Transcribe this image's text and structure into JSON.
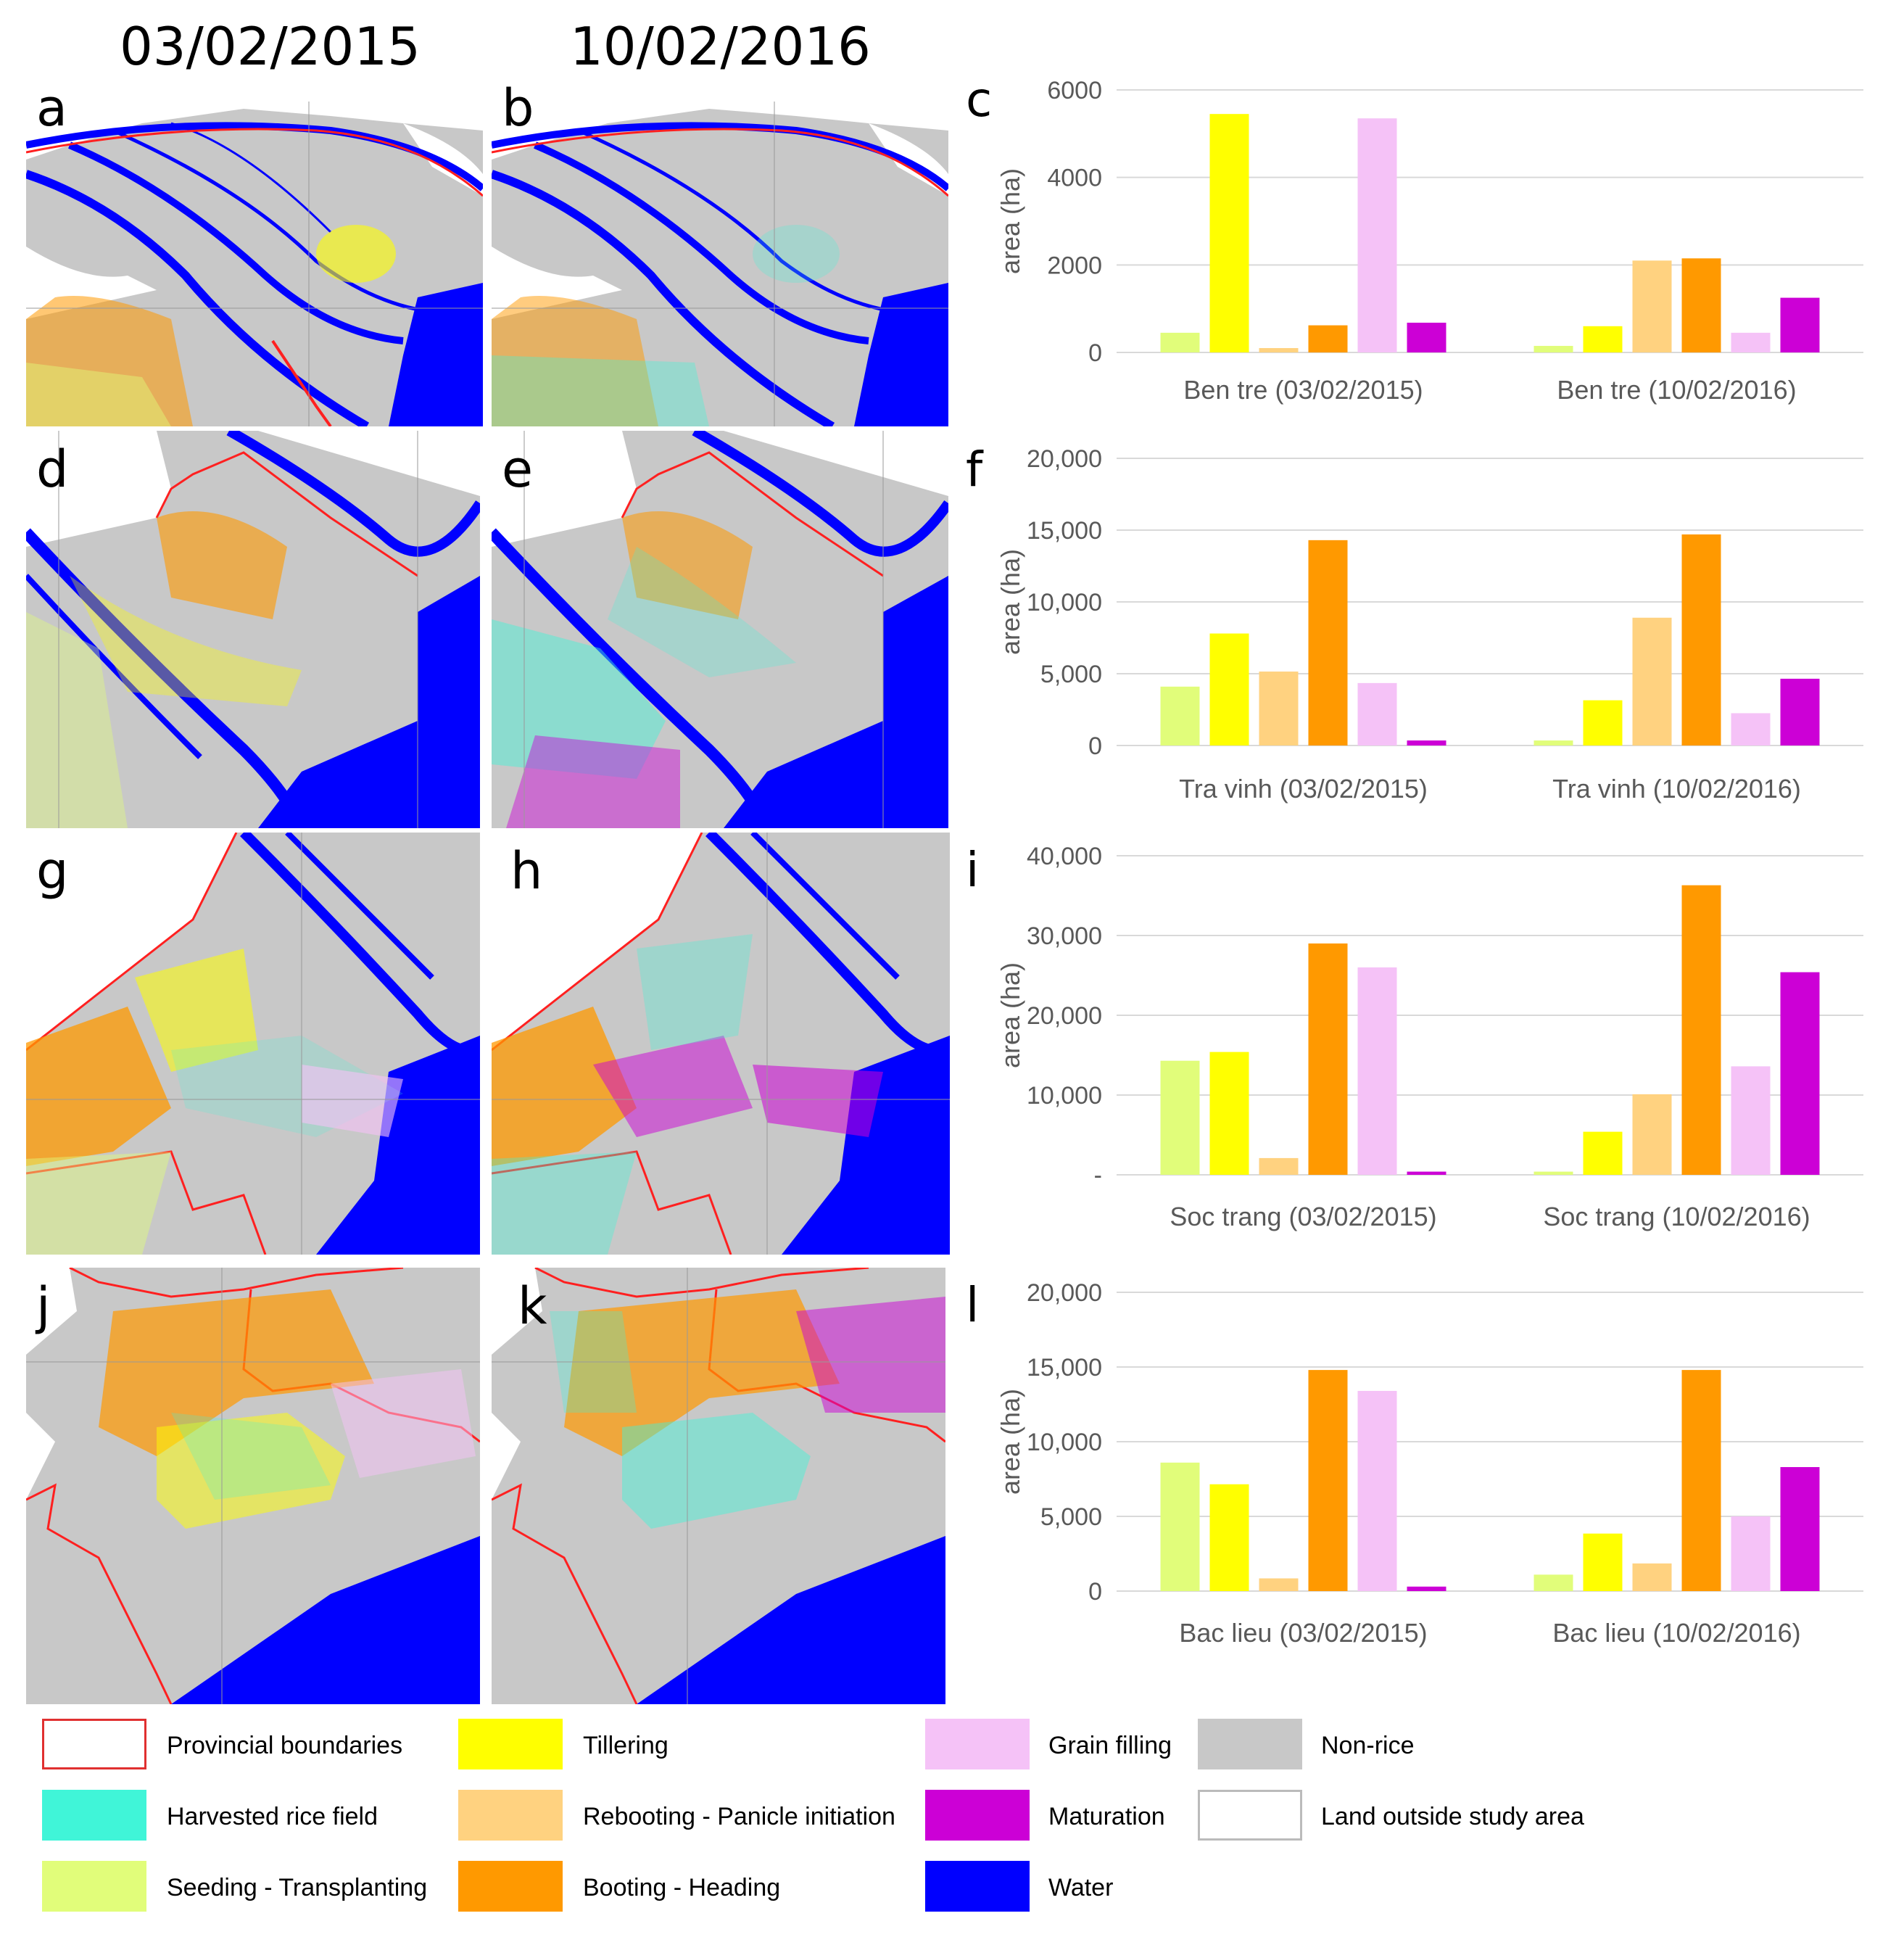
{
  "header": {
    "date_left": "03/02/2015",
    "date_right": "10/02/2016"
  },
  "panels": {
    "map_letters": [
      "a",
      "b",
      "d",
      "e",
      "g",
      "h",
      "j",
      "k"
    ],
    "chart_letters": [
      "c",
      "f",
      "i",
      "l"
    ]
  },
  "colors": {
    "seeding": "#e1fd7a",
    "tillering": "#ffff00",
    "rebooting": "#ffd280",
    "booting": "#ff9900",
    "grain": "#f5c2f7",
    "maturation": "#cc00d6",
    "harvested": "#40f5d8",
    "water": "#0000ff",
    "nonrice": "#c8c8c8",
    "boundary": "#ff2020"
  },
  "chart_data": [
    {
      "type": "bar",
      "title": "",
      "ylabel": "area (ha)",
      "ylim": [
        0,
        6000
      ],
      "yticks": [
        "0",
        "2000",
        "4000",
        "6000"
      ],
      "categories": [
        "Ben tre (03/02/2015)",
        "Ben tre (10/02/2016)"
      ],
      "series": [
        {
          "name": "Seeding - Transplanting",
          "values": [
            450,
            150
          ]
        },
        {
          "name": "Tillering",
          "values": [
            5450,
            600
          ]
        },
        {
          "name": "Rebooting - Panicle initiation",
          "values": [
            100,
            2100
          ]
        },
        {
          "name": "Booting - Heading",
          "values": [
            620,
            2150
          ]
        },
        {
          "name": "Grain filling",
          "values": [
            5350,
            450
          ]
        },
        {
          "name": "Maturation",
          "values": [
            680,
            1250
          ]
        }
      ]
    },
    {
      "type": "bar",
      "title": "",
      "ylabel": "area (ha)",
      "ylim": [
        0,
        20000
      ],
      "yticks": [
        "0",
        "5,000",
        "10,000",
        "15,000",
        "20,000"
      ],
      "categories": [
        "Tra vinh (03/02/2015)",
        "Tra vinh (10/02/2016)"
      ],
      "series": [
        {
          "name": "Seeding - Transplanting",
          "values": [
            4100,
            350
          ]
        },
        {
          "name": "Tillering",
          "values": [
            7800,
            3150
          ]
        },
        {
          "name": "Rebooting - Panicle initiation",
          "values": [
            5150,
            8900
          ]
        },
        {
          "name": "Booting - Heading",
          "values": [
            14300,
            14700
          ]
        },
        {
          "name": "Grain filling",
          "values": [
            4350,
            2250
          ]
        },
        {
          "name": "Maturation",
          "values": [
            350,
            4650
          ]
        }
      ]
    },
    {
      "type": "bar",
      "title": "",
      "ylabel": "area (ha)",
      "ylim": [
        0,
        40000
      ],
      "yticks": [
        "-",
        "10,000",
        "20,000",
        "30,000",
        "40,000"
      ],
      "categories": [
        "Soc trang (03/02/2015)",
        "Soc trang (10/02/2016)"
      ],
      "series": [
        {
          "name": "Seeding - Transplanting",
          "values": [
            14300,
            400
          ]
        },
        {
          "name": "Tillering",
          "values": [
            15400,
            5400
          ]
        },
        {
          "name": "Rebooting - Panicle initiation",
          "values": [
            2100,
            10100
          ]
        },
        {
          "name": "Booting - Heading",
          "values": [
            29000,
            36300
          ]
        },
        {
          "name": "Grain filling",
          "values": [
            26000,
            13600
          ]
        },
        {
          "name": "Maturation",
          "values": [
            400,
            25400
          ]
        }
      ]
    },
    {
      "type": "bar",
      "title": "",
      "ylabel": "area (ha)",
      "ylim": [
        0,
        20000
      ],
      "yticks": [
        "0",
        "5,000",
        "10,000",
        "15,000",
        "20,000"
      ],
      "categories": [
        "Bac lieu (03/02/2015)",
        "Bac lieu (10/02/2016)"
      ],
      "series": [
        {
          "name": "Seeding - Transplanting",
          "values": [
            8600,
            1100
          ]
        },
        {
          "name": "Tillering",
          "values": [
            7150,
            3850
          ]
        },
        {
          "name": "Rebooting - Panicle initiation",
          "values": [
            850,
            1850
          ]
        },
        {
          "name": "Booting - Heading",
          "values": [
            14800,
            14800
          ]
        },
        {
          "name": "Grain filling",
          "values": [
            13400,
            5000
          ]
        },
        {
          "name": "Maturation",
          "values": [
            300,
            8300
          ]
        }
      ]
    }
  ],
  "legend": {
    "items": [
      {
        "label": "Provincial boundaries",
        "color": "#ffffff",
        "border": "#e03030"
      },
      {
        "label": "Tillering",
        "color": "#ffff00",
        "border": "#ffff00"
      },
      {
        "label": "Grain filling",
        "color": "#f5c2f7",
        "border": "#f5c2f7"
      },
      {
        "label": "Non-rice",
        "color": "#c8c8c8",
        "border": "#c8c8c8"
      },
      {
        "label": "Harvested rice field",
        "color": "#40f5d8",
        "border": "#40f5d8"
      },
      {
        "label": "Rebooting - Panicle initiation",
        "color": "#ffd280",
        "border": "#ffd280"
      },
      {
        "label": "Maturation",
        "color": "#cc00d6",
        "border": "#cc00d6"
      },
      {
        "label": "Land outside study area",
        "color": "#ffffff",
        "border": "#bbbbbb"
      },
      {
        "label": "Seeding - Transplanting",
        "color": "#e1fd7a",
        "border": "#e1fd7a"
      },
      {
        "label": "Booting - Heading",
        "color": "#ff9900",
        "border": "#ff9900"
      },
      {
        "label": "Water",
        "color": "#0000ff",
        "border": "#0000ff"
      }
    ]
  }
}
